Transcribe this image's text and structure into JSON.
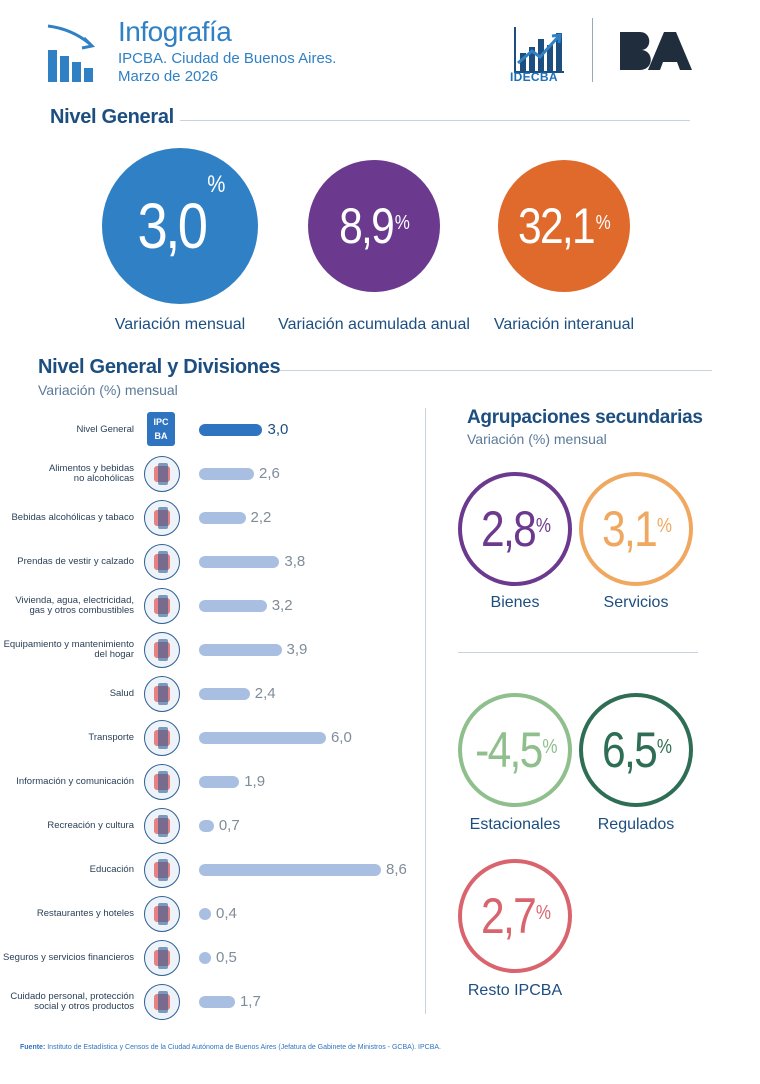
{
  "header": {
    "title": "Infografía",
    "subtitle1": "IPCBA. Ciudad de Buenos Aires.",
    "subtitle2": "Marzo de 2026",
    "idec_label": "IDECBA",
    "ba_label": "BA"
  },
  "nivel_general": {
    "title": "Nivel General",
    "percent_sign": "%",
    "items": [
      {
        "value": "3,0",
        "label": "Variación mensual",
        "color": "#2f80c4"
      },
      {
        "value": "8,9",
        "label": "Variación acumulada anual",
        "color": "#6b3a8e"
      },
      {
        "value": "32,1",
        "label": "Variación interanual",
        "color": "#e06a2c"
      }
    ]
  },
  "divisiones": {
    "title": "Nivel General y Divisiones",
    "subtitle": "Variación (%) mensual",
    "nivel_icon_text": "IPC\nBA",
    "icons": [
      "ipcba-icon",
      "food-icon",
      "bottle-icon",
      "clothes-icon",
      "house-icon",
      "appliance-icon",
      "doctor-icon",
      "transport-icon",
      "computer-icon",
      "theater-icon",
      "school-icon",
      "cloche-icon",
      "bank-icon",
      "cosmetics-icon"
    ]
  },
  "chart_data": {
    "type": "bar",
    "orientation": "horizontal",
    "categories": [
      "Nivel General",
      "Alimentos y bebidas no alcohólicas",
      "Bebidas alcohólicas y tabaco",
      "Prendas de vestir y calzado",
      "Vivienda, agua, electricidad, gas y otros combustibles",
      "Equipamiento y mantenimiento del hogar",
      "Salud",
      "Transporte",
      "Información y comunicación",
      "Recreación y cultura",
      "Educación",
      "Restaurantes y hoteles",
      "Seguros y servicios financieros",
      "Cuidado personal, protección social y otros productos"
    ],
    "label_lines": [
      [
        "Nivel General"
      ],
      [
        "Alimentos y bebidas",
        "no alcohólicas"
      ],
      [
        "Bebidas alcohólicas y tabaco"
      ],
      [
        "Prendas de vestir y calzado"
      ],
      [
        "Vivienda, agua, electricidad,",
        "gas y otros combustibles"
      ],
      [
        "Equipamiento y mantenimiento",
        "del hogar"
      ],
      [
        "Salud"
      ],
      [
        "Transporte"
      ],
      [
        "Información y comunicación"
      ],
      [
        "Recreación y cultura"
      ],
      [
        "Educación"
      ],
      [
        "Restaurantes y hoteles"
      ],
      [
        "Seguros y servicios financieros"
      ],
      [
        "Cuidado personal, protección",
        "social y otros productos"
      ]
    ],
    "values": [
      3.0,
      2.6,
      2.2,
      3.8,
      3.2,
      3.9,
      2.4,
      6.0,
      1.9,
      0.7,
      8.6,
      0.4,
      0.5,
      1.7
    ],
    "value_labels": [
      "3,0",
      "2,6",
      "2,2",
      "3,8",
      "3,2",
      "3,9",
      "2,4",
      "6,0",
      "1,9",
      "0,7",
      "8,6",
      "0,4",
      "0,5",
      "1,7"
    ],
    "xlim": [
      0,
      8.6
    ],
    "grid": false,
    "colors": {
      "highlight": "#2f74c0",
      "bars": "#a9bfe2"
    }
  },
  "agrupaciones": {
    "title": "Agrupaciones secundarias",
    "subtitle": "Variación (%) mensual",
    "percent_sign": "%",
    "items": [
      {
        "value": "2,8",
        "label": "Bienes",
        "color": "#6b3a8e"
      },
      {
        "value": "3,1",
        "label": "Servicios",
        "color": "#f0a860"
      },
      {
        "value": "-4,5",
        "label": "Estacionales",
        "color": "#8fbf8c"
      },
      {
        "value": "6,5",
        "label": "Regulados",
        "color": "#2e6e55"
      },
      {
        "value": "2,7",
        "label": "Resto IPCBA",
        "color": "#d9646e"
      }
    ]
  },
  "footer": {
    "label": "Fuente:",
    "text": "Instituto de Estadística y Censos de la Ciudad Autónoma de Buenos Aires (Jefatura de Gabinete de Ministros - GCBA). IPCBA."
  }
}
